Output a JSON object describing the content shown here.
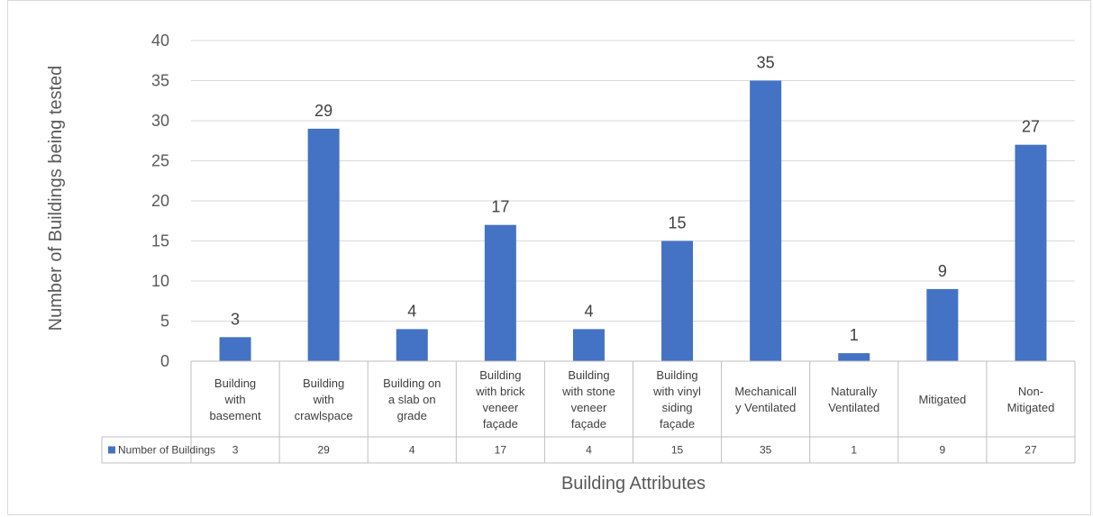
{
  "chart_data": {
    "type": "bar",
    "xlabel": "Building Attributes",
    "ylabel": "Number of Buildings being tested",
    "ylim": [
      0,
      40
    ],
    "ytick_step": 5,
    "grid": true,
    "legend_placement": "data-table-row",
    "bar_color": "#4472c4",
    "categories": [
      [
        "Building",
        "with",
        "basement"
      ],
      [
        "Building",
        "with",
        "crawlspace"
      ],
      [
        "Building on",
        "a slab on",
        "grade"
      ],
      [
        "Building",
        "with brick",
        "veneer",
        "façade"
      ],
      [
        "Building",
        "with stone",
        "veneer",
        "façade"
      ],
      [
        "Building",
        "with vinyl",
        "siding",
        "façade"
      ],
      [
        "Mechanicall",
        "y Ventilated"
      ],
      [
        "Naturally",
        "Ventilated"
      ],
      [
        "Mitigated"
      ],
      [
        "Non-",
        "Mitigated"
      ]
    ],
    "series": [
      {
        "name": "Number of Buildings",
        "values": [
          3,
          29,
          4,
          17,
          4,
          15,
          35,
          1,
          9,
          27
        ]
      }
    ]
  }
}
